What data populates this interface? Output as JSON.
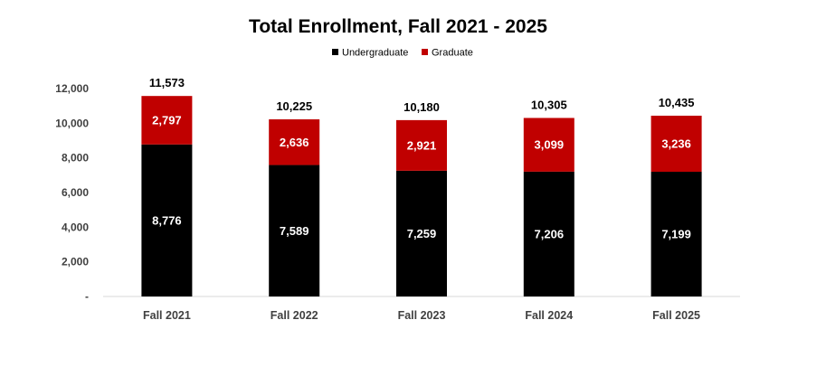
{
  "chart_data": {
    "type": "bar",
    "stacked": true,
    "title": "Total Enrollment, Fall 2021 - 2025",
    "categories": [
      "Fall 2021",
      "Fall 2022",
      "Fall 2023",
      "Fall 2024",
      "Fall 2025"
    ],
    "series": [
      {
        "name": "Undergraduate",
        "color": "#000000",
        "values": [
          8776,
          7589,
          7259,
          7206,
          7199
        ],
        "labels": [
          "8,776",
          "7,589",
          "7,259",
          "7,206",
          "7,199"
        ]
      },
      {
        "name": "Graduate",
        "color": "#c00000",
        "values": [
          2797,
          2636,
          2921,
          3099,
          3236
        ],
        "labels": [
          "2,797",
          "2,636",
          "2,921",
          "3,099",
          "3,236"
        ]
      }
    ],
    "totals": [
      11573,
      10225,
      10180,
      10305,
      10435
    ],
    "total_labels": [
      "11,573",
      "10,225",
      "10,180",
      "10,305",
      "10,435"
    ],
    "ylim": [
      0,
      12000
    ],
    "yticks": [
      0,
      2000,
      4000,
      6000,
      8000,
      10000,
      12000
    ],
    "ytick_labels": [
      "-",
      "2,000",
      "4,000",
      "6,000",
      "8,000",
      "10,000",
      "12,000"
    ],
    "grid": false,
    "legend_position": "top-center"
  }
}
